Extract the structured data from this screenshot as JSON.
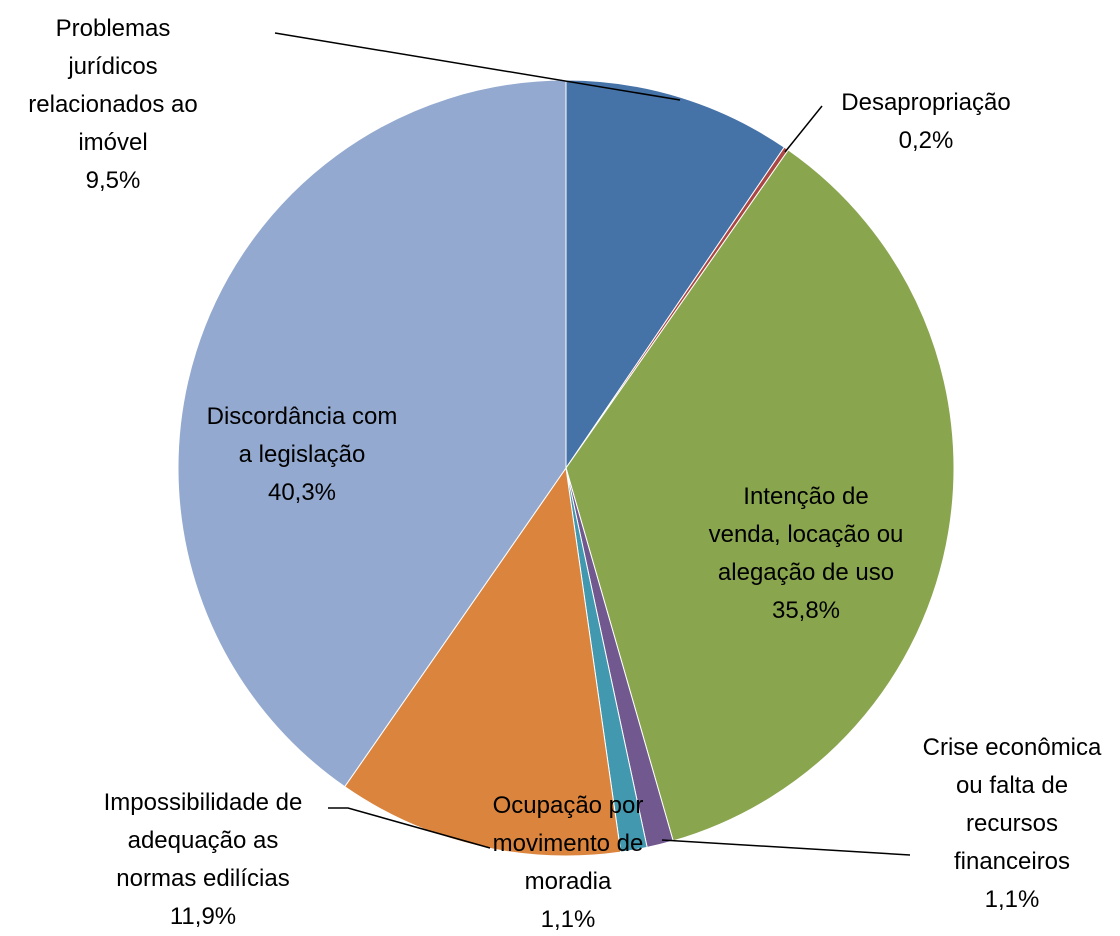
{
  "chart_data": {
    "type": "pie",
    "categories": [
      "Problemas\njurídicos\nrelacionados ao\nimóvel",
      "Desapropriação",
      "Intenção de\nvenda, locação ou\nalegação de uso",
      "Crise econômica\nou falta de\nrecursos\nfinanceiros",
      "Ocupação por\nmovimento de\nmoradia",
      "Impossibilidade de\nadequação as\nnormas edilícias",
      "Discordância com\na legislação"
    ],
    "values": [
      9.5,
      0.2,
      35.8,
      1.1,
      1.1,
      11.9,
      40.3
    ],
    "value_labels": [
      "9,5%",
      "0,2%",
      "35,8%",
      "1,1%",
      "1,1%",
      "11,9%",
      "40,3%"
    ],
    "colors": [
      "#4572a7",
      "#aa4643",
      "#89a54e",
      "#71588f",
      "#4198af",
      "#db843d",
      "#93a9cf"
    ]
  }
}
